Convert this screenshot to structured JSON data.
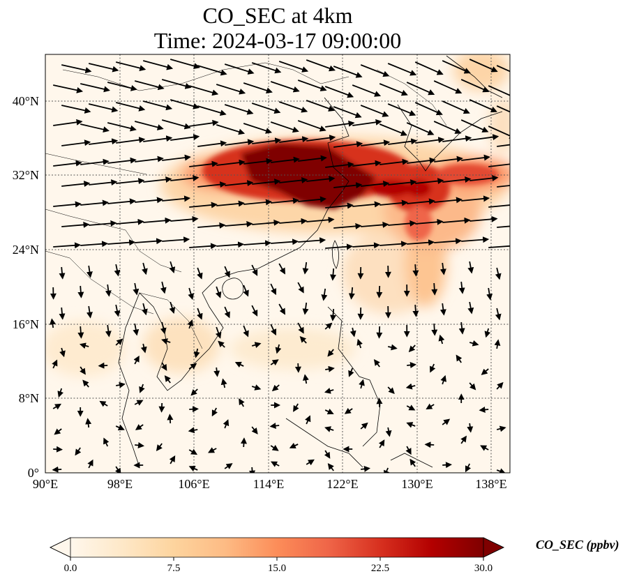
{
  "title_line1": "CO_SEC at 4km",
  "title_line2": "Time: 2024-03-17 09:00:00",
  "lat_ticks": [
    "40°N",
    "32°N",
    "24°N",
    "16°N",
    "8°N",
    "0°"
  ],
  "lon_ticks": [
    "90°E",
    "98°E",
    "106°E",
    "114°E",
    "122°E",
    "130°E",
    "138°E"
  ],
  "colorbar": {
    "label": "CO_SEC (ppbv)",
    "ticks": [
      "0.0",
      "7.5",
      "15.0",
      "22.5",
      "30.0"
    ],
    "min": 0,
    "max": 30,
    "extend": "both",
    "colormap": "OrRd"
  },
  "map_extent": {
    "lon": [
      90,
      140
    ],
    "lat": [
      0,
      44
    ]
  },
  "plume_colors": {
    "dark": "#7f0000",
    "mid": "#d7301f",
    "light": "#fdd49e",
    "background": "#fff7ec"
  }
}
